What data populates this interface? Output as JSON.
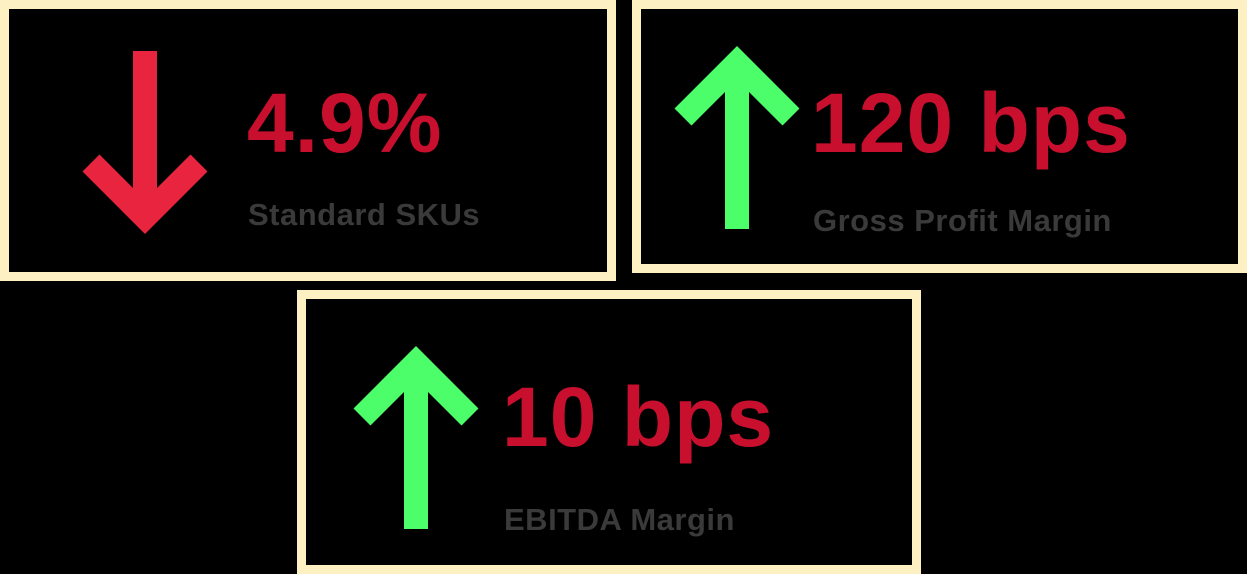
{
  "colors": {
    "border": "#fdf1c3",
    "background": "#000000",
    "value_text": "#c8102e",
    "label_text": "#3a3a3a",
    "down_arrow": "#e8243f",
    "up_arrow": "#4cff6a"
  },
  "cards": [
    {
      "direction": "down",
      "icon": "arrow-down-icon",
      "value": "4.9%",
      "label": "Standard SKUs"
    },
    {
      "direction": "up",
      "icon": "arrow-up-icon",
      "value": "120 bps",
      "label": "Gross Profit Margin"
    },
    {
      "direction": "up",
      "icon": "arrow-up-icon",
      "value": "10 bps",
      "label": "EBITDA Margin"
    }
  ]
}
